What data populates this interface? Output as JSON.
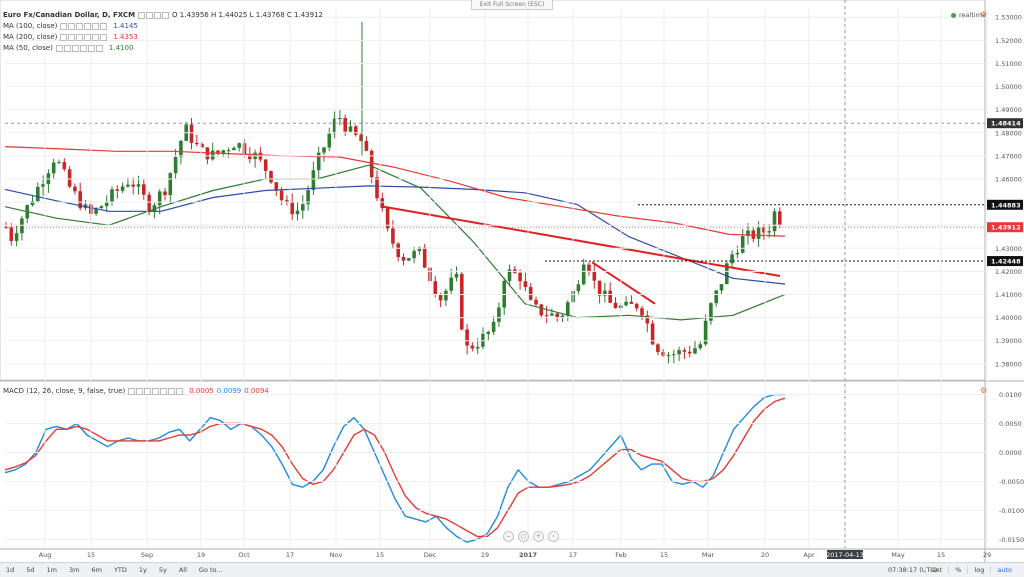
{
  "header": {
    "symbol": "Euro Fx/Canadian Dollar, D, FXCM",
    "ohlc_text": "O 1.43956  H 1.44025  L 1.43768  C 1.43912",
    "exit_full_screen": "Exit Full Screen (ESC)",
    "realtime": "realtime"
  },
  "legend": [
    {
      "label": "MA (100, close)",
      "value": "1.4145",
      "color": "#2b4aa8"
    },
    {
      "label": "MA (200, close)",
      "value": "1.4353",
      "color": "#e53935"
    },
    {
      "label": "MA (50, close)",
      "value": "1.4100",
      "color": "#2e7d32"
    }
  ],
  "macd_legend": {
    "label": "MACD (12, 26, close, 9, false, true)",
    "values": [
      "0.0005",
      "0.0099",
      "0.0094"
    ],
    "colors": [
      "#e53935",
      "#1e88e5",
      "#e53935"
    ]
  },
  "colors": {
    "up": "#2e7d32",
    "down": "#c62828",
    "ma100": "#2b4aa8",
    "ma200": "#e53935",
    "ma50": "#2e7d32",
    "macd": "#1e88e5",
    "signal": "#e53935",
    "trendline": "#e02020",
    "grid": "#eeeeee"
  },
  "chart_data": [
    {
      "type": "candlestick",
      "title": "Euro Fx/Canadian Dollar, D, FXCM",
      "x_axis_labels": [
        "Aug",
        "15",
        "Sep",
        "19",
        "Oct",
        "17",
        "Nov",
        "15",
        "Dec",
        "19",
        "2017",
        "17",
        "Feb",
        "15",
        "Mar",
        "20",
        "Apr",
        "2017-04-13",
        "May",
        "15",
        "29"
      ],
      "y_ticks": [
        "1.53000",
        "1.52000",
        "1.51000",
        "1.50000",
        "1.49000",
        "1.48000",
        "1.47000",
        "1.46000",
        "1.45000",
        "1.44000",
        "1.43000",
        "1.42000",
        "1.41000",
        "1.40000",
        "1.39000",
        "1.38000"
      ],
      "ylim": [
        1.373,
        1.534
      ],
      "price_labels": [
        {
          "text": "1.48414",
          "value": 1.48414,
          "color": "#333333"
        },
        {
          "text": "1.44883",
          "value": 1.44883,
          "color": "#111111"
        },
        {
          "text": "1.43912",
          "value": 1.43912,
          "color": "#e53935"
        },
        {
          "text": "1.42448",
          "value": 1.42448,
          "color": "#111111"
        }
      ],
      "horizontal_lines": [
        {
          "value": 1.44883,
          "style": "dotted"
        },
        {
          "value": 1.42448,
          "style": "dotted"
        }
      ],
      "vertical_marker": {
        "label": "2017-04-13",
        "style": "dashed"
      },
      "series": [
        {
          "name": "MA (100, close)",
          "color": "#2b4aa8",
          "points": [
            [
              1.4555,
              1.4505,
              1.446,
              1.446,
              1.452,
              1.455,
              1.456,
              1.457,
              1.4565,
              1.4555,
              1.454,
              1.449,
              1.435,
              1.426,
              1.417,
              1.4145
            ]
          ]
        },
        {
          "name": "MA (200, close)",
          "color": "#e53935",
          "points": [
            [
              1.474,
              1.473,
              1.472,
              1.472,
              1.471,
              1.47,
              1.4695,
              1.465,
              1.459,
              1.452,
              1.448,
              1.444,
              1.441,
              1.436,
              1.4353
            ]
          ]
        },
        {
          "name": "MA (50, close)",
          "color": "#2e7d32",
          "points": [
            [
              1.448,
              1.443,
              1.44,
              1.448,
              1.455,
              1.46,
              1.46,
              1.466,
              1.456,
              1.433,
              1.406,
              1.4,
              1.401,
              1.399,
              1.401,
              1.41
            ]
          ]
        }
      ],
      "trendlines": [
        {
          "from": [
            1.448,
            "Nov-22"
          ],
          "to": [
            1.418,
            "Mar-30"
          ]
        },
        {
          "from": [
            1.424,
            "Jan-26"
          ],
          "to": [
            1.406,
            "Feb-07"
          ]
        }
      ]
    },
    {
      "type": "line",
      "title": "MACD (12, 26, close, 9, false, true)",
      "y_ticks": [
        "0.0100",
        "0.0050",
        "0.0000",
        "-0.0050",
        "-0.0100",
        "-0.0150"
      ],
      "ylim": [
        -0.0165,
        0.012
      ],
      "series": [
        {
          "name": "MACD",
          "color": "#1e88e5",
          "values": [
            -0.0035,
            -0.003,
            -0.002,
            0.0,
            0.004,
            0.0045,
            0.004,
            0.005,
            0.003,
            0.002,
            0.001,
            0.002,
            0.0025,
            0.002,
            0.002,
            0.0025,
            0.0035,
            0.004,
            0.002,
            0.004,
            0.006,
            0.0055,
            0.004,
            0.005,
            0.0045,
            0.003,
            0.001,
            -0.002,
            -0.0055,
            -0.006,
            -0.005,
            -0.003,
            0.001,
            0.0045,
            0.006,
            0.004,
            0.0,
            -0.004,
            -0.008,
            -0.011,
            -0.0115,
            -0.012,
            -0.011,
            -0.013,
            -0.0145,
            -0.0155,
            -0.015,
            -0.014,
            -0.011,
            -0.006,
            -0.003,
            -0.005,
            -0.006,
            -0.006,
            -0.0055,
            -0.005,
            -0.004,
            -0.003,
            -0.001,
            0.001,
            0.003,
            -0.001,
            -0.003,
            -0.002,
            -0.002,
            -0.005,
            -0.0055,
            -0.005,
            -0.006,
            -0.004,
            0.0,
            0.004,
            0.006,
            0.008,
            0.0095,
            0.01,
            0.01
          ]
        },
        {
          "name": "Signal",
          "color": "#e53935",
          "values": [
            -0.003,
            -0.0025,
            -0.0018,
            -0.0005,
            0.002,
            0.004,
            0.004,
            0.0045,
            0.004,
            0.003,
            0.002,
            0.002,
            0.002,
            0.002,
            0.002,
            0.002,
            0.0025,
            0.003,
            0.003,
            0.0035,
            0.0045,
            0.005,
            0.005,
            0.005,
            0.0045,
            0.004,
            0.003,
            0.001,
            -0.002,
            -0.0045,
            -0.0055,
            -0.005,
            -0.003,
            0.0,
            0.003,
            0.004,
            0.003,
            0.0,
            -0.004,
            -0.0075,
            -0.0095,
            -0.0105,
            -0.011,
            -0.0115,
            -0.0125,
            -0.0135,
            -0.0145,
            -0.0145,
            -0.013,
            -0.01,
            -0.007,
            -0.006,
            -0.006,
            -0.006,
            -0.0058,
            -0.0055,
            -0.005,
            -0.004,
            -0.0025,
            -0.001,
            0.0005,
            0.0005,
            -0.0005,
            -0.001,
            -0.0015,
            -0.003,
            -0.0045,
            -0.005,
            -0.005,
            -0.0045,
            -0.003,
            -0.0005,
            0.0025,
            0.0055,
            0.0075,
            0.0088,
            0.0094
          ]
        }
      ]
    }
  ],
  "toolbar": {
    "ranges": [
      "1d",
      "5d",
      "1m",
      "3m",
      "6m",
      "YTD",
      "1y",
      "5y",
      "All",
      "Go to..."
    ],
    "time": "07:38:17 (UTC)",
    "right_buttons": [
      "ext",
      "%",
      "log",
      "auto"
    ]
  }
}
